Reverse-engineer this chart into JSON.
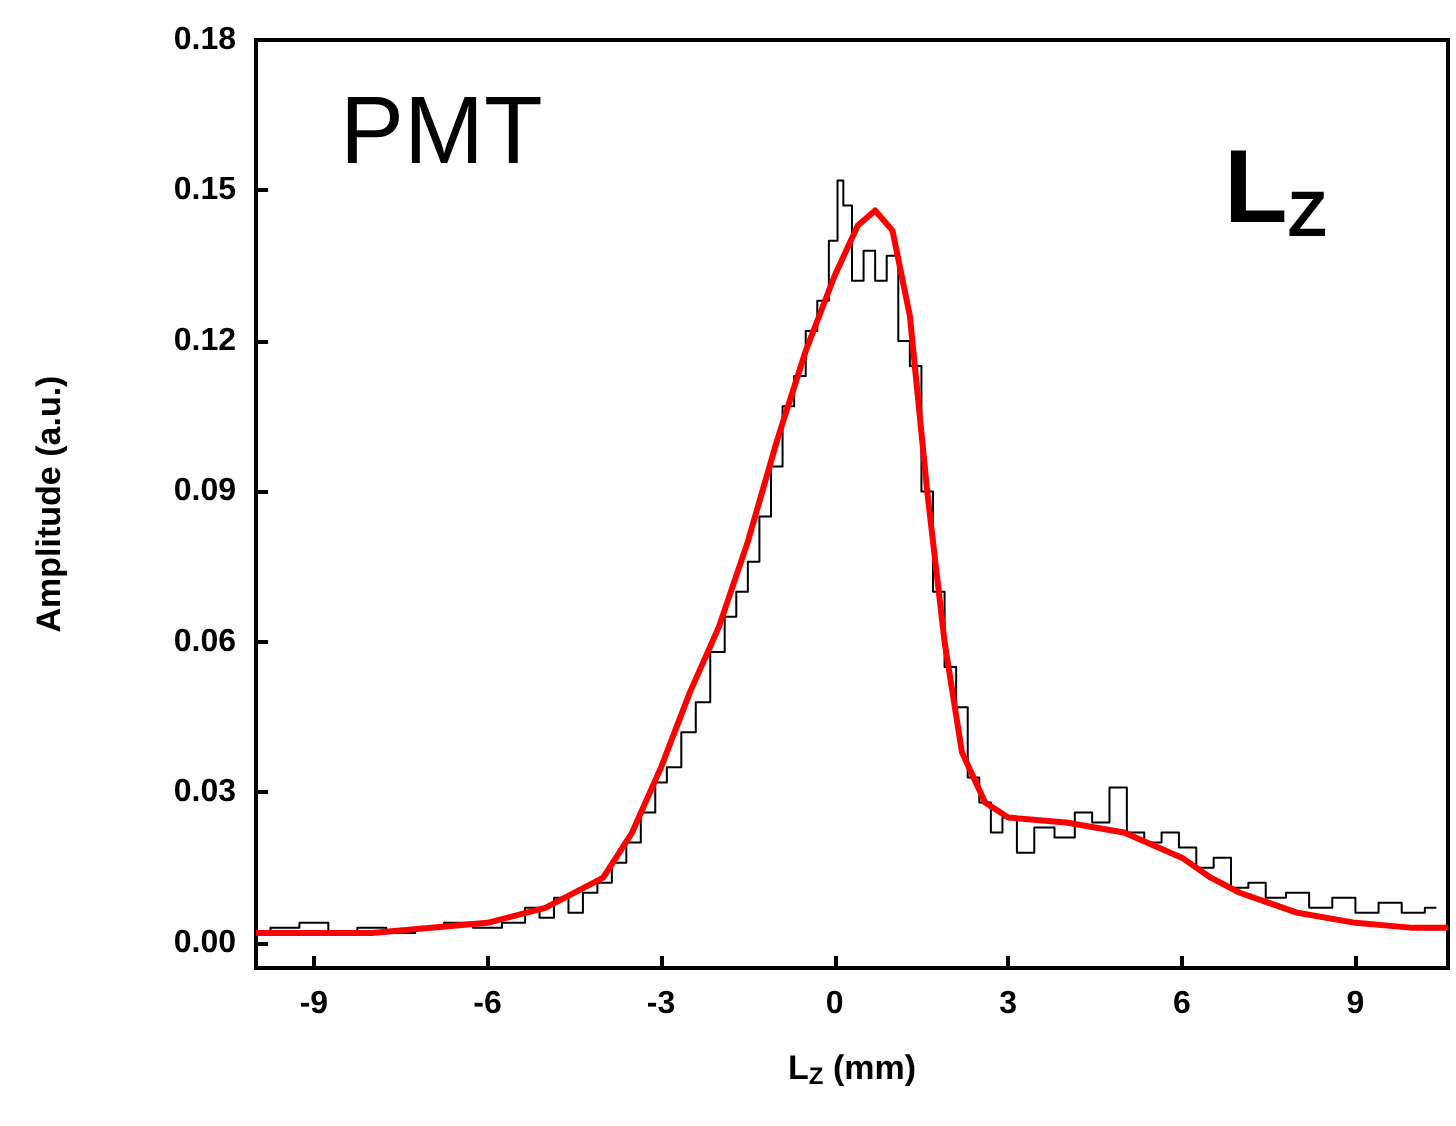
{
  "chart_data": {
    "type": "step",
    "xlabel": "L$_{Z}$ (mm)",
    "ylabel": "Amplitude (a.u.)",
    "annotations": [
      "PMT",
      "L$_{Z}$"
    ],
    "xlim": [
      -10,
      10.6
    ],
    "xticks": [
      -9,
      -6,
      -3,
      0,
      3,
      6,
      9
    ],
    "ylim": [
      -0.005,
      0.18
    ],
    "yticks": [
      {
        "value": 0,
        "label": "0.00"
      },
      0.03,
      0.06,
      0.09,
      0.12,
      0.15,
      0.18
    ],
    "grid": false,
    "series": [
      {
        "color": "#000000",
        "x": [
          -10,
          -9.5,
          -9,
          -8.5,
          -8,
          -7.5,
          -7,
          -6.5,
          -6,
          -5.5,
          -5.2,
          -5,
          -4.7,
          -4.5,
          -4.2,
          -4,
          -3.7,
          -3.5,
          -3.2,
          -3,
          -2.8,
          -2.5,
          -2.3,
          -2,
          -1.8,
          -1.6,
          -1.4,
          -1.2,
          -1,
          -0.8,
          -0.6,
          -0.4,
          -0.2,
          0,
          0.1,
          0.2,
          0.4,
          0.6,
          0.8,
          1,
          1.2,
          1.4,
          1.6,
          1.8,
          2,
          2.2,
          2.4,
          2.6,
          2.8,
          3,
          3.3,
          3.6,
          4,
          4.3,
          4.6,
          4.9,
          5.2,
          5.5,
          5.8,
          6.1,
          6.4,
          6.7,
          7,
          7.3,
          7.6,
          8,
          8.4,
          8.8,
          9.2,
          9.6,
          10,
          10.4
        ],
        "values": [
          0.002,
          0.003,
          0.004,
          0.002,
          0.003,
          0.002,
          0.003,
          0.004,
          0.003,
          0.004,
          0.007,
          0.005,
          0.009,
          0.006,
          0.01,
          0.012,
          0.016,
          0.02,
          0.026,
          0.032,
          0.035,
          0.042,
          0.048,
          0.058,
          0.065,
          0.07,
          0.076,
          0.085,
          0.095,
          0.107,
          0.113,
          0.122,
          0.128,
          0.14,
          0.152,
          0.147,
          0.132,
          0.138,
          0.132,
          0.137,
          0.12,
          0.115,
          0.09,
          0.07,
          0.055,
          0.047,
          0.033,
          0.028,
          0.022,
          0.025,
          0.018,
          0.023,
          0.021,
          0.026,
          0.024,
          0.031,
          0.022,
          0.02,
          0.022,
          0.019,
          0.015,
          0.017,
          0.011,
          0.012,
          0.009,
          0.01,
          0.007,
          0.009,
          0.006,
          0.008,
          0.006,
          0.007
        ]
      },
      {
        "type": "line",
        "color": "#ff0000",
        "x": [
          -10,
          -8,
          -6,
          -5,
          -4,
          -3.5,
          -3,
          -2.5,
          -2,
          -1.5,
          -1,
          -0.5,
          0,
          0.4,
          0.7,
          1,
          1.3,
          1.6,
          1.9,
          2.2,
          2.6,
          3,
          4,
          5,
          6,
          6.5,
          7,
          8,
          9,
          10,
          10.6
        ],
        "values": [
          0.002,
          0.002,
          0.004,
          0.007,
          0.013,
          0.022,
          0.035,
          0.05,
          0.063,
          0.08,
          0.1,
          0.118,
          0.133,
          0.143,
          0.146,
          0.142,
          0.125,
          0.09,
          0.06,
          0.038,
          0.028,
          0.025,
          0.024,
          0.022,
          0.017,
          0.013,
          0.01,
          0.006,
          0.004,
          0.003,
          0.003
        ]
      }
    ]
  }
}
